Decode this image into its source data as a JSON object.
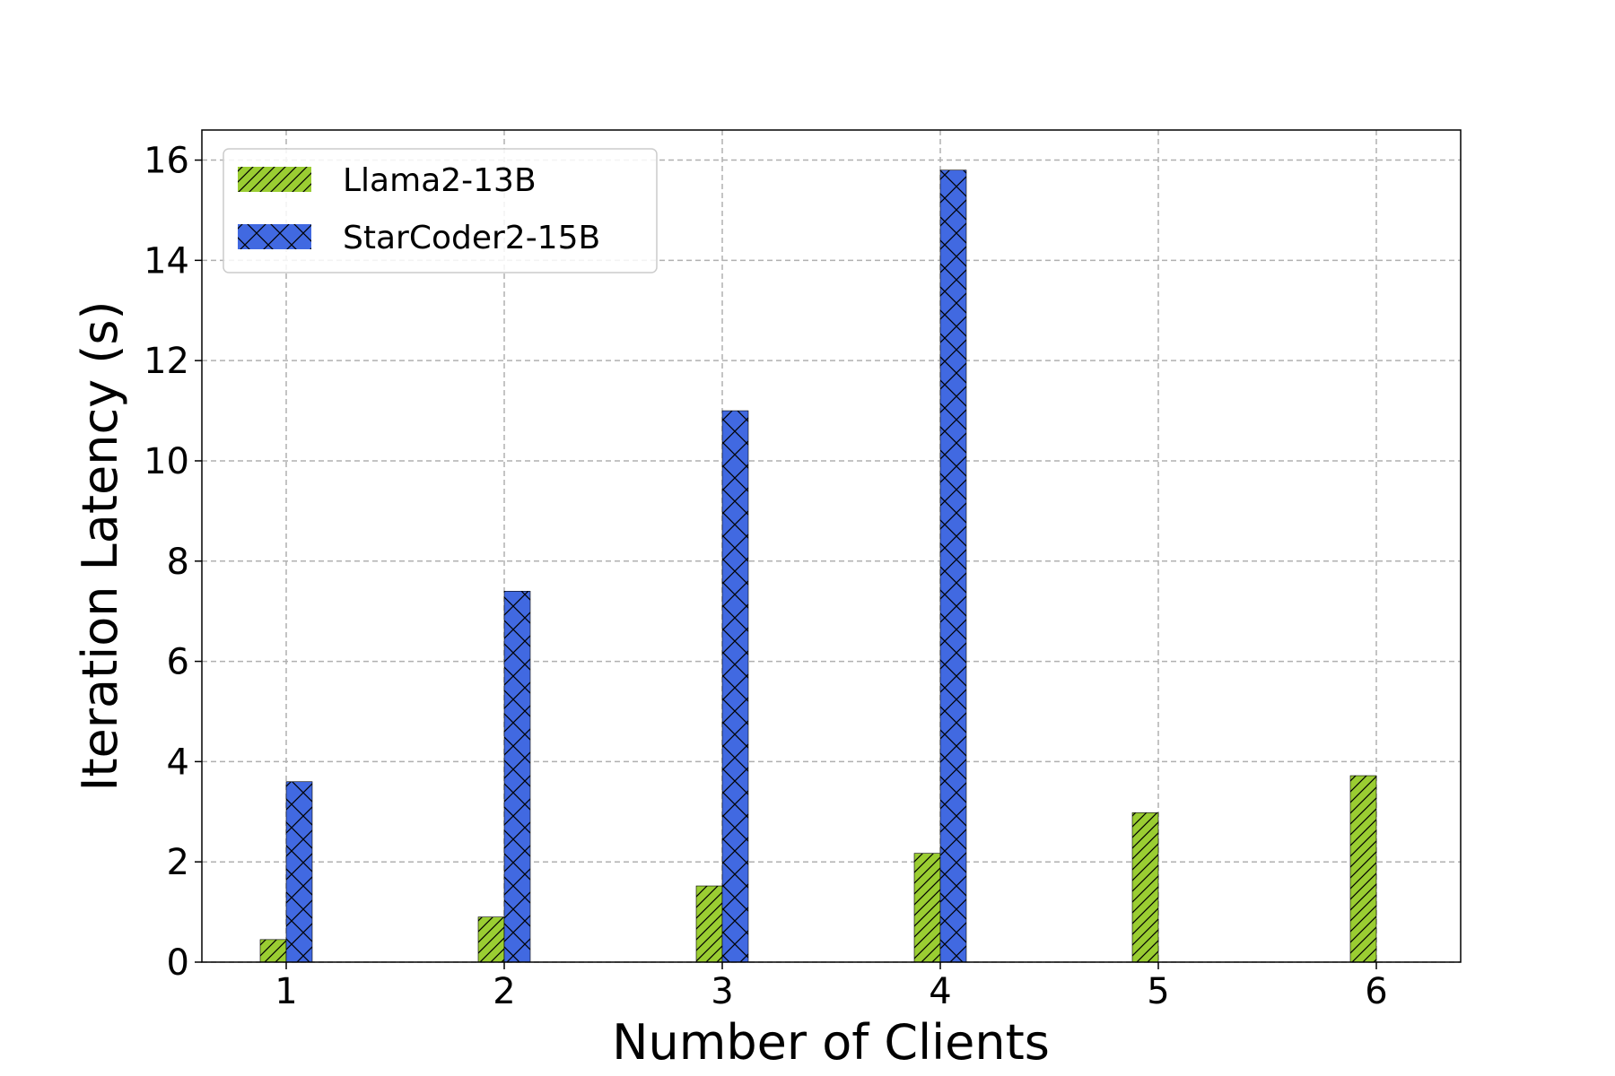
{
  "chart_data": {
    "type": "bar",
    "categories": [
      "1",
      "2",
      "3",
      "4",
      "5",
      "6"
    ],
    "series": [
      {
        "name": "Llama2-13B",
        "values": [
          0.45,
          0.9,
          1.52,
          2.17,
          2.98,
          3.72
        ],
        "color": "#9acd32",
        "hatch": "diagonal"
      },
      {
        "name": "StarCoder2-15B",
        "values": [
          3.6,
          7.4,
          11.0,
          15.8,
          null,
          null
        ],
        "color": "#4169e1",
        "hatch": "crosshatch"
      }
    ],
    "xlabel": "Number of Clients",
    "ylabel": "Iteration Latency (s)",
    "ylim": [
      0,
      16.6
    ],
    "yticks": [
      "0",
      "2",
      "4",
      "6",
      "8",
      "10",
      "12",
      "14",
      "16"
    ],
    "grid": true,
    "legend_position": "top-left"
  }
}
